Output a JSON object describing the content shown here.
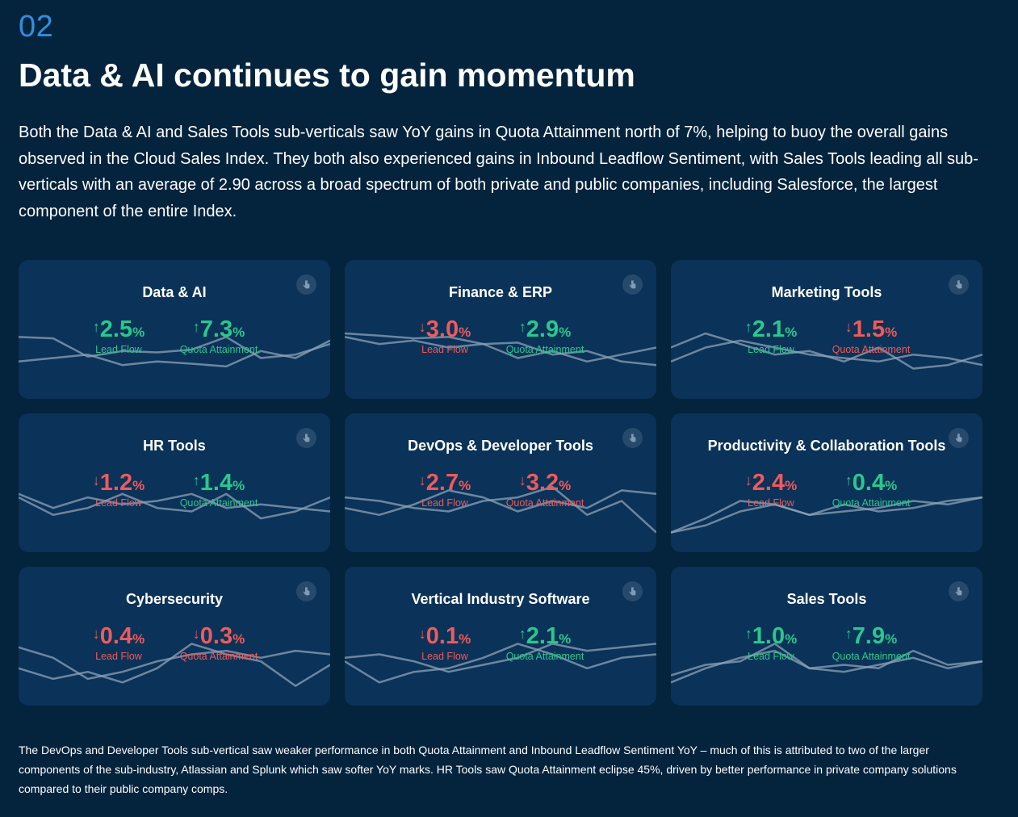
{
  "section": {
    "number": "02",
    "title": "Data & AI continues to gain momentum"
  },
  "intro": "Both the Data & AI and Sales Tools sub-verticals saw YoY gains in Quota Attainment north of 7%, helping to buoy the overall gains observed in the Cloud Sales Index. They both also experienced gains in Inbound Leadflow Sentiment, with Sales Tools leading all sub-verticals with an average of 2.90 across a broad spectrum of both private and public companies, including Salesforce, the largest component of the entire Index.",
  "labels": {
    "lead_flow": "Lead Flow",
    "quota_attainment": "Quota Attainment",
    "percent": "%"
  },
  "colors": {
    "up": "#27c98d",
    "down": "#ef5a5a",
    "card": "#0b3258",
    "accent": "#2f8fe0",
    "spark": "#8ea3b8"
  },
  "cards": [
    {
      "title": "Data & AI",
      "lead": {
        "dir": "up",
        "value": "2.5"
      },
      "quota": {
        "dir": "up",
        "value": "7.3"
      },
      "spark_a": [
        0.2,
        0.22,
        0.48,
        0.4,
        0.42,
        0.38,
        0.2,
        0.5,
        0.45,
        0.3
      ],
      "spark_b": [
        0.55,
        0.5,
        0.45,
        0.6,
        0.55,
        0.58,
        0.62,
        0.4,
        0.5,
        0.25
      ]
    },
    {
      "title": "Finance & ERP",
      "lead": {
        "dir": "down",
        "value": "3.0"
      },
      "quota": {
        "dir": "up",
        "value": "2.9"
      },
      "spark_a": [
        0.15,
        0.18,
        0.22,
        0.2,
        0.3,
        0.28,
        0.45,
        0.4,
        0.55,
        0.6
      ],
      "spark_b": [
        0.2,
        0.3,
        0.25,
        0.35,
        0.3,
        0.5,
        0.4,
        0.55,
        0.45,
        0.35
      ]
    },
    {
      "title": "Marketing Tools",
      "lead": {
        "dir": "up",
        "value": "2.1"
      },
      "quota": {
        "dir": "down",
        "value": "1.5"
      },
      "spark_a": [
        0.35,
        0.15,
        0.3,
        0.45,
        0.4,
        0.55,
        0.35,
        0.65,
        0.6,
        0.45
      ],
      "spark_b": [
        0.55,
        0.35,
        0.25,
        0.35,
        0.45,
        0.5,
        0.55,
        0.45,
        0.5,
        0.6
      ]
    },
    {
      "title": "HR Tools",
      "lead": {
        "dir": "down",
        "value": "1.2"
      },
      "quota": {
        "dir": "up",
        "value": "1.4"
      },
      "spark_a": [
        0.25,
        0.45,
        0.3,
        0.4,
        0.35,
        0.25,
        0.45,
        0.4,
        0.45,
        0.5
      ],
      "spark_b": [
        0.3,
        0.55,
        0.45,
        0.25,
        0.45,
        0.5,
        0.25,
        0.6,
        0.5,
        0.3
      ]
    },
    {
      "title": "DevOps & Developer Tools",
      "lead": {
        "dir": "down",
        "value": "2.7"
      },
      "quota": {
        "dir": "down",
        "value": "3.2"
      },
      "spark_a": [
        0.45,
        0.55,
        0.4,
        0.2,
        0.3,
        0.5,
        0.35,
        0.45,
        0.2,
        0.25
      ],
      "spark_b": [
        0.3,
        0.35,
        0.45,
        0.5,
        0.35,
        0.3,
        0.15,
        0.55,
        0.35,
        0.8
      ]
    },
    {
      "title": "Productivity & Collaboration Tools",
      "lead": {
        "dir": "down",
        "value": "2.4"
      },
      "quota": {
        "dir": "up",
        "value": "0.4"
      },
      "spark_a": [
        0.8,
        0.6,
        0.35,
        0.4,
        0.55,
        0.4,
        0.5,
        0.45,
        0.35,
        0.3
      ],
      "spark_b": [
        0.8,
        0.7,
        0.5,
        0.4,
        0.55,
        0.5,
        0.45,
        0.35,
        0.4,
        0.3
      ]
    },
    {
      "title": "Cybersecurity",
      "lead": {
        "dir": "down",
        "value": "0.4"
      },
      "quota": {
        "dir": "down",
        "value": "0.3"
      },
      "spark_a": [
        0.25,
        0.4,
        0.7,
        0.6,
        0.45,
        0.35,
        0.3,
        0.4,
        0.3,
        0.35
      ],
      "spark_b": [
        0.55,
        0.7,
        0.6,
        0.75,
        0.55,
        0.2,
        0.35,
        0.45,
        0.8,
        0.5
      ]
    },
    {
      "title": "Vertical Industry Software",
      "lead": {
        "dir": "down",
        "value": "0.1"
      },
      "quota": {
        "dir": "up",
        "value": "2.1"
      },
      "spark_a": [
        0.4,
        0.35,
        0.45,
        0.6,
        0.5,
        0.4,
        0.2,
        0.3,
        0.25,
        0.2
      ],
      "spark_b": [
        0.45,
        0.75,
        0.6,
        0.55,
        0.4,
        0.2,
        0.35,
        0.55,
        0.4,
        0.35
      ]
    },
    {
      "title": "Sales Tools",
      "lead": {
        "dir": "up",
        "value": "1.0"
      },
      "quota": {
        "dir": "up",
        "value": "7.9"
      },
      "spark_a": [
        0.75,
        0.55,
        0.4,
        0.3,
        0.55,
        0.6,
        0.5,
        0.4,
        0.55,
        0.45
      ],
      "spark_b": [
        0.65,
        0.5,
        0.45,
        0.2,
        0.55,
        0.5,
        0.55,
        0.3,
        0.5,
        0.45
      ]
    }
  ],
  "footer": "The DevOps and Developer Tools sub-vertical saw weaker performance in both Quota Attainment and Inbound Leadflow Sentiment YoY – much of this is attributed to two of the larger components of the sub-industry, Atlassian and Splunk which saw softer YoY marks. HR Tools saw Quota Attainment eclipse 45%, driven by better performance in private company solutions compared to their public company comps."
}
